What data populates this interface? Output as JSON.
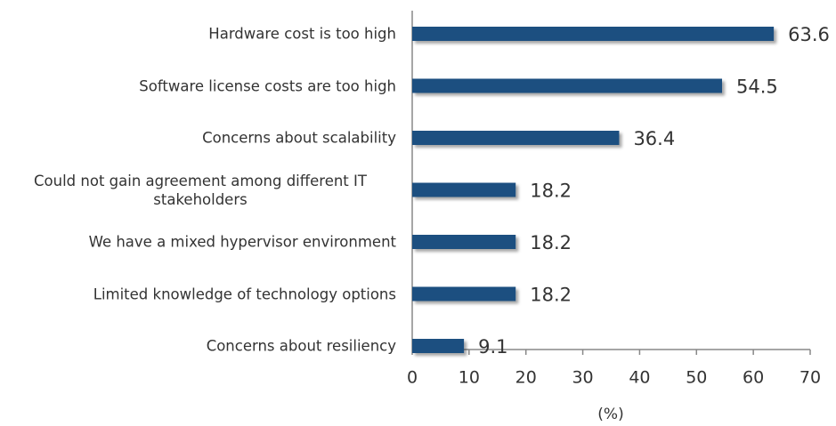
{
  "chart_data": {
    "type": "hbar",
    "x_label": "(%)",
    "categories": [
      "Hardware cost is too high",
      "Software license costs are too high",
      "Concerns about scalability",
      "Could not gain agreement among different IT stakeholders",
      "We have a mixed hypervisor environment",
      "Limited knowledge of technology options",
      "Concerns about resiliency"
    ],
    "values": [
      63.6,
      54.5,
      36.4,
      18.2,
      18.2,
      18.2,
      9.1
    ],
    "color": "#1b4f80",
    "xlim": [
      0,
      70
    ],
    "xticks": [
      0,
      10,
      20,
      30,
      40,
      50,
      60,
      70
    ]
  }
}
